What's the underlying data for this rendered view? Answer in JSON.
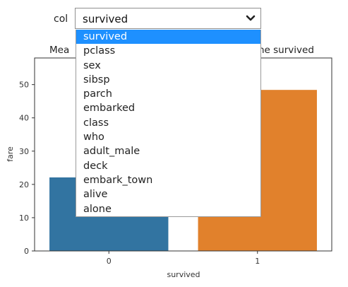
{
  "control": {
    "label": "col",
    "selected_value": "survived",
    "options": [
      "survived",
      "pclass",
      "sex",
      "sibsp",
      "parch",
      "embarked",
      "class",
      "who",
      "adult_male",
      "deck",
      "embark_town",
      "alive",
      "alone"
    ]
  },
  "chart_data": {
    "type": "bar",
    "title_left_fragment": "Mea",
    "title_right_fragment": "he survived",
    "categories": [
      "0",
      "1"
    ],
    "values": [
      22.1,
      48.4
    ],
    "colors": [
      "#3274a1",
      "#e1812c"
    ],
    "xlabel": "survived",
    "ylabel": "fare",
    "ylim": [
      0,
      58
    ],
    "yticks": [
      0,
      10,
      20,
      30,
      40,
      50
    ]
  }
}
